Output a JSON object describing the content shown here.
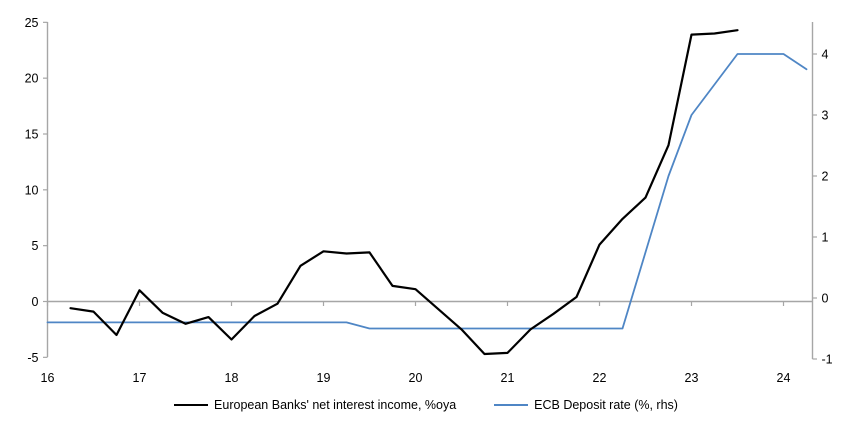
{
  "chart_data": {
    "type": "line",
    "title": "",
    "x_axis": {
      "ticks": [
        16,
        17,
        18,
        19,
        20,
        21,
        22,
        23,
        24
      ],
      "range": [
        16,
        24.3
      ]
    },
    "left_axis": {
      "ticks": [
        25,
        20,
        15,
        10,
        5,
        0,
        -5
      ],
      "range": [
        -5,
        25
      ]
    },
    "right_axis": {
      "ticks": [
        4,
        3,
        2,
        1,
        0,
        -1
      ],
      "range": [
        -1,
        4.5
      ]
    },
    "grid": "zero-line-only",
    "legend_position": "bottom-center",
    "series": [
      {
        "name": "European Banks' net interest income, %oya",
        "axis": "left",
        "color": "#000000",
        "width": 2.2,
        "x": [
          16.25,
          16.5,
          16.75,
          17.0,
          17.25,
          17.5,
          17.75,
          18.0,
          18.25,
          18.5,
          18.75,
          19.0,
          19.25,
          19.5,
          19.75,
          20.0,
          20.25,
          20.5,
          20.75,
          21.0,
          21.25,
          21.5,
          21.75,
          22.0,
          22.25,
          22.5,
          22.75,
          23.0,
          23.25,
          23.5
        ],
        "values": [
          -0.6,
          -0.9,
          -3.0,
          1.0,
          -1.0,
          -2.0,
          -1.4,
          -3.4,
          -1.3,
          -0.2,
          3.2,
          4.5,
          4.3,
          4.4,
          1.4,
          1.1,
          -0.7,
          -2.5,
          -4.7,
          -4.6,
          -2.5,
          -1.1,
          0.4,
          5.1,
          7.4,
          9.3,
          14.0,
          23.9,
          24.0,
          24.3
        ]
      },
      {
        "name": "ECB Deposit rate (%, rhs)",
        "axis": "right",
        "color": "#4f86c5",
        "width": 1.8,
        "x": [
          16.0,
          16.25,
          16.5,
          16.75,
          17.0,
          17.25,
          17.5,
          17.75,
          18.0,
          18.25,
          18.5,
          18.75,
          19.0,
          19.25,
          19.5,
          19.75,
          20.0,
          20.25,
          20.5,
          20.75,
          21.0,
          21.25,
          21.5,
          21.75,
          22.0,
          22.25,
          22.5,
          22.75,
          23.0,
          23.25,
          23.5,
          23.75,
          24.0,
          24.25
        ],
        "values": [
          -0.4,
          -0.4,
          -0.4,
          -0.4,
          -0.4,
          -0.4,
          -0.4,
          -0.4,
          -0.4,
          -0.4,
          -0.4,
          -0.4,
          -0.4,
          -0.4,
          -0.5,
          -0.5,
          -0.5,
          -0.5,
          -0.5,
          -0.5,
          -0.5,
          -0.5,
          -0.5,
          -0.5,
          -0.5,
          -0.5,
          0.75,
          2.0,
          3.0,
          3.5,
          4.0,
          4.0,
          4.0,
          3.75
        ]
      }
    ],
    "axis_color": "#a6a6a6",
    "text_color": "#000000"
  }
}
